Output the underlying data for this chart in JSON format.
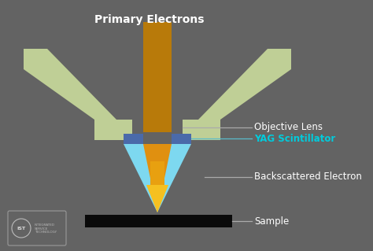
{
  "bg_color": "#636363",
  "title_text": "Primary Electrons",
  "title_color": "#ffffff",
  "title_fontsize": 10,
  "label_color": "#ffffff",
  "yag_color": "#00ccdd",
  "lens_color": "#bfcf96",
  "scintillator_top_color": "#4a6aaa",
  "scintillator_body_color": "#7dd8f0",
  "beam_color": "#b87a0a",
  "beam_tip_color": "#f0b000",
  "sample_color": "#0a0a0a",
  "line_color": "#aaaaaa",
  "labels": {
    "objective_lens": "Objective Lens",
    "yag": "YAG Scintillator",
    "backscattered": "Backscattered Electron",
    "sample": "Sample"
  },
  "label_fontsize": 8.5
}
